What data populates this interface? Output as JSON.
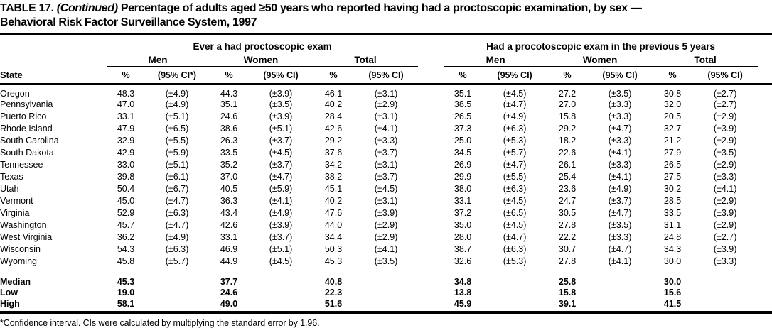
{
  "title": {
    "part1": "TABLE 17.",
    "part2": "(Continued)",
    "part3": "Percentage of adults aged ≥50 years who reported having had a proctoscopic examination, by sex —",
    "part4": "Behavioral Risk Factor Surveillance System, 1997"
  },
  "table": {
    "header": {
      "state_label": "State",
      "groups": [
        {
          "title": "Ever a had proctoscopic exam",
          "subgroups": [
            "Men",
            "Women",
            "Total"
          ],
          "cols": [
            "%",
            "(95% CI*)",
            "%",
            "(95% CI)",
            "%",
            "(95% CI)"
          ]
        },
        {
          "title": "Had a procotoscopic exam in the previous 5 years",
          "subgroups": [
            "Men",
            "Women",
            "Total"
          ],
          "cols": [
            "%",
            "(95% CI)",
            "%",
            "(95% CI)",
            "%",
            "(95% CI)"
          ]
        }
      ]
    },
    "rows": [
      [
        "Oregon",
        "48.3",
        "(±4.9)",
        "44.3",
        "(±3.9)",
        "46.1",
        "(±3.1)",
        "35.1",
        "(±4.5)",
        "27.2",
        "(±3.5)",
        "30.8",
        "(±2.7)"
      ],
      [
        "Pennsylvania",
        "47.0",
        "(±4.9)",
        "35.1",
        "(±3.5)",
        "40.2",
        "(±2.9)",
        "38.5",
        "(±4.7)",
        "27.0",
        "(±3.3)",
        "32.0",
        "(±2.7)"
      ],
      [
        "Puerto Rico",
        "33.1",
        "(±5.1)",
        "24.6",
        "(±3.9)",
        "28.4",
        "(±3.1)",
        "26.5",
        "(±4.9)",
        "15.8",
        "(±3.3)",
        "20.5",
        "(±2.9)"
      ],
      [
        "Rhode Island",
        "47.9",
        "(±6.5)",
        "38.6",
        "(±5.1)",
        "42.6",
        "(±4.1)",
        "37.3",
        "(±6.3)",
        "29.2",
        "(±4.7)",
        "32.7",
        "(±3.9)"
      ],
      [
        "South Carolina",
        "32.9",
        "(±5.5)",
        "26.3",
        "(±3.7)",
        "29.2",
        "(±3.3)",
        "25.0",
        "(±5.3)",
        "18.2",
        "(±3.3)",
        "21.2",
        "(±2.9)"
      ],
      [
        "South Dakota",
        "42.9",
        "(±5.9)",
        "33.5",
        "(±4.5)",
        "37.6",
        "(±3.7)",
        "34.5",
        "(±5.7)",
        "22.6",
        "(±4.1)",
        "27.9",
        "(±3.5)"
      ],
      [
        "Tennessee",
        "33.0",
        "(±5.1)",
        "35.2",
        "(±3.7)",
        "34.2",
        "(±3.1)",
        "26.9",
        "(±4.7)",
        "26.1",
        "(±3.3)",
        "26.5",
        "(±2.9)"
      ],
      [
        "Texas",
        "39.8",
        "(±6.1)",
        "37.0",
        "(±4.7)",
        "38.2",
        "(±3.7)",
        "29.9",
        "(±5.5)",
        "25.4",
        "(±4.1)",
        "27.5",
        "(±3.3)"
      ],
      [
        "Utah",
        "50.4",
        "(±6.7)",
        "40.5",
        "(±5.9)",
        "45.1",
        "(±4.5)",
        "38.0",
        "(±6.3)",
        "23.6",
        "(±4.9)",
        "30.2",
        "(±4.1)"
      ],
      [
        "Vermont",
        "45.0",
        "(±4.7)",
        "36.3",
        "(±4.1)",
        "40.2",
        "(±3.1)",
        "33.1",
        "(±4.5)",
        "24.7",
        "(±3.7)",
        "28.5",
        "(±2.9)"
      ],
      [
        "Virginia",
        "52.9",
        "(±6.3)",
        "43.4",
        "(±4.9)",
        "47.6",
        "(±3.9)",
        "37.2",
        "(±6.5)",
        "30.5",
        "(±4.7)",
        "33.5",
        "(±3.9)"
      ],
      [
        "Washington",
        "45.7",
        "(±4.7)",
        "42.6",
        "(±3.9)",
        "44.0",
        "(±2.9)",
        "35.0",
        "(±4.5)",
        "27.8",
        "(±3.5)",
        "31.1",
        "(±2.9)"
      ],
      [
        "West Virginia",
        "36.2",
        "(±4.9)",
        "33.1",
        "(±3.7)",
        "34.4",
        "(±2.9)",
        "28.0",
        "(±4.7)",
        "22.2",
        "(±3.3)",
        "24.8",
        "(±2.7)"
      ],
      [
        "Wisconsin",
        "54.3",
        "(±6.3)",
        "46.9",
        "(±5.1)",
        "50.3",
        "(±4.1)",
        "38.7",
        "(±6.3)",
        "30.7",
        "(±4.7)",
        "34.3",
        "(±3.9)"
      ],
      [
        "Wyoming",
        "45.8",
        "(±5.7)",
        "44.9",
        "(±4.5)",
        "45.3",
        "(±3.5)",
        "32.6",
        "(±5.3)",
        "27.8",
        "(±4.1)",
        "30.0",
        "(±3.3)"
      ]
    ],
    "summary_rows": [
      [
        "Median",
        "45.3",
        "",
        "37.7",
        "",
        "40.8",
        "",
        "34.8",
        "",
        "25.8",
        "",
        "30.0",
        ""
      ],
      [
        "Low",
        "19.0",
        "",
        "24.6",
        "",
        "22.3",
        "",
        "13.8",
        "",
        "15.8",
        "",
        "15.6",
        ""
      ],
      [
        "High",
        "58.1",
        "",
        "49.0",
        "",
        "51.6",
        "",
        "45.9",
        "",
        "39.1",
        "",
        "41.5",
        ""
      ]
    ]
  },
  "footnote": "*Confidence interval. CIs were calculated by multiplying the standard error by 1.96."
}
